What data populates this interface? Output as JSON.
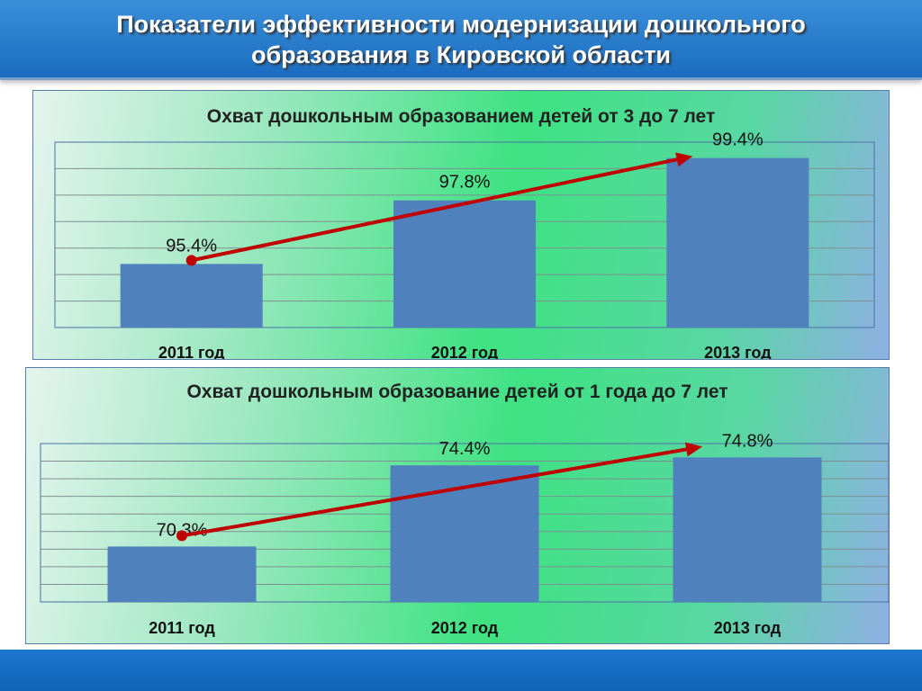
{
  "header": {
    "title": "Показатели эффективности модернизации дошкольного образования в Кировской области"
  },
  "chart_data": [
    {
      "type": "bar",
      "title": "Охват дошкольным образованием детей от 3 до 7 лет",
      "categories": [
        "2011 год",
        "2012 год",
        "2013 год"
      ],
      "values": [
        95.4,
        97.8,
        99.4
      ],
      "value_labels": [
        "95.4%",
        "97.8%",
        "99.4%"
      ],
      "ylim": [
        93,
        100
      ],
      "grid": true,
      "trend_arrow": true,
      "colors": {
        "bar": "#4f81bd",
        "arrow": "#c00000"
      }
    },
    {
      "type": "bar",
      "title": "Охват дошкольным образование детей от 1 года до 7 лет",
      "categories": [
        "2011 год",
        "2012 год",
        "2013 год"
      ],
      "values": [
        70.3,
        74.4,
        74.8
      ],
      "value_labels": [
        "70.3%",
        "74.4%",
        "74.8%"
      ],
      "ylim": [
        67.5,
        75.5
      ],
      "grid": true,
      "trend_arrow": true,
      "colors": {
        "bar": "#4f81bd",
        "arrow": "#c00000"
      }
    }
  ]
}
